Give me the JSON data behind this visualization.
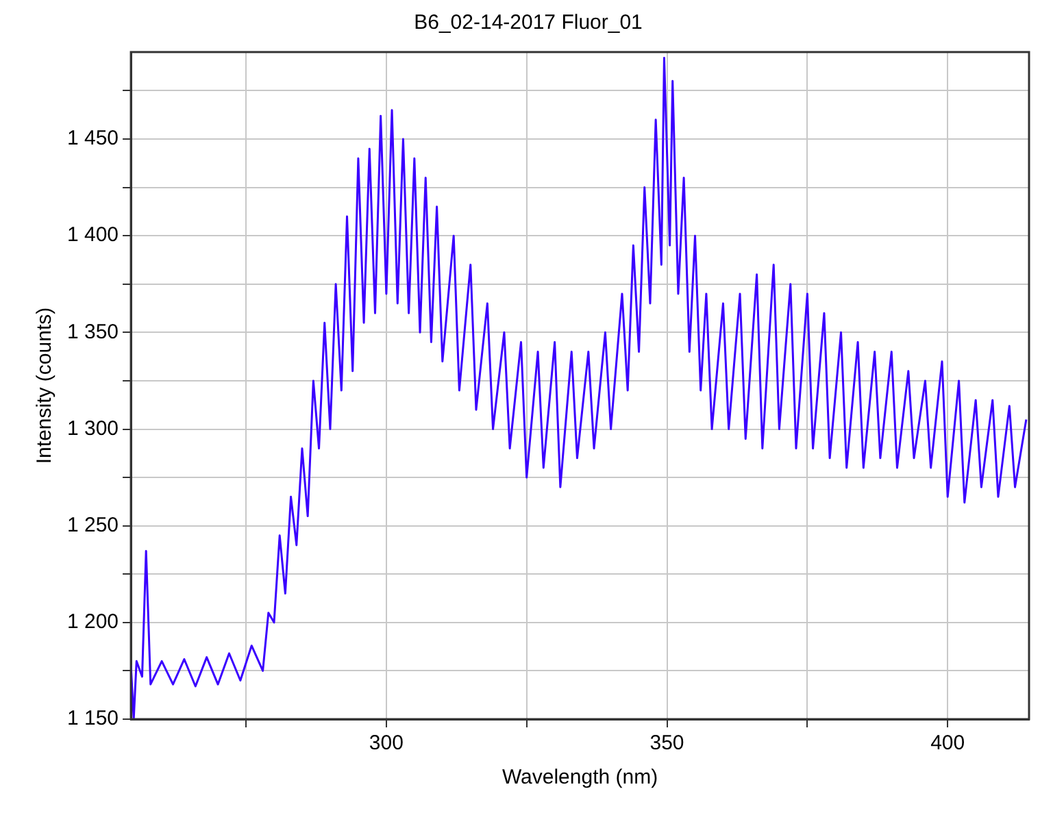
{
  "chart_data": {
    "type": "line",
    "title": "B6_02-14-2017 Fluor_01",
    "xlabel": "Wavelength (nm)",
    "ylabel": "Intensity (counts)",
    "xlim": [
      254.5,
      414.5
    ],
    "ylim": [
      1150,
      1495
    ],
    "xticks": [
      {
        "value": 275,
        "label": null
      },
      300,
      {
        "value": 325,
        "label": null
      },
      350,
      {
        "value": 375,
        "label": null
      },
      400
    ],
    "yticks": [
      {
        "value": 1150,
        "label": "1 150"
      },
      {
        "value": 1175,
        "label": null
      },
      {
        "value": 1200,
        "label": "1 200"
      },
      {
        "value": 1225,
        "label": null
      },
      {
        "value": 1250,
        "label": "1 250"
      },
      {
        "value": 1275,
        "label": null
      },
      {
        "value": 1300,
        "label": "1 300"
      },
      {
        "value": 1325,
        "label": null
      },
      {
        "value": 1350,
        "label": "1 350"
      },
      {
        "value": 1375,
        "label": null
      },
      {
        "value": 1400,
        "label": "1 400"
      },
      {
        "value": 1425,
        "label": null
      },
      {
        "value": 1450,
        "label": "1 450"
      },
      {
        "value": 1475,
        "label": null
      }
    ],
    "grid": true,
    "legend": false,
    "marker": "none",
    "line_style": "solid",
    "series": [
      {
        "color": "#3a00ff",
        "x": [
          254.5,
          255,
          255.5,
          256.5,
          257.2,
          258,
          260,
          262,
          264,
          266,
          268,
          270,
          272,
          274,
          276,
          278,
          279,
          280,
          281,
          282,
          283,
          284,
          285,
          286,
          287,
          288,
          289,
          290,
          291,
          292,
          293,
          294,
          295,
          296,
          297,
          298,
          299,
          300,
          301,
          302,
          303,
          304,
          305,
          306,
          307,
          308,
          309,
          310,
          312,
          313,
          315,
          316,
          318,
          319,
          321,
          322,
          324,
          325,
          327,
          328,
          330,
          331,
          333,
          334,
          336,
          337,
          339,
          340,
          342,
          343,
          344,
          345,
          346,
          347,
          348,
          349,
          349.5,
          350.5,
          351,
          352,
          353,
          354,
          355,
          356,
          357,
          358,
          360,
          361,
          363,
          364,
          366,
          367,
          369,
          370,
          372,
          373,
          375,
          376,
          378,
          379,
          381,
          382,
          384,
          385,
          387,
          388,
          390,
          391,
          393,
          394,
          396,
          397,
          399,
          400,
          402,
          403,
          405,
          406,
          408,
          409,
          411,
          412,
          414
        ],
        "values": [
          1178,
          1150,
          1180,
          1172,
          1237,
          1168,
          1180,
          1168,
          1181,
          1167,
          1182,
          1168,
          1184,
          1170,
          1188,
          1175,
          1205,
          1200,
          1245,
          1215,
          1265,
          1240,
          1290,
          1255,
          1325,
          1290,
          1355,
          1300,
          1375,
          1320,
          1410,
          1330,
          1440,
          1355,
          1445,
          1360,
          1462,
          1370,
          1465,
          1365,
          1450,
          1360,
          1440,
          1350,
          1430,
          1345,
          1415,
          1335,
          1400,
          1320,
          1385,
          1310,
          1365,
          1300,
          1350,
          1290,
          1345,
          1275,
          1340,
          1280,
          1345,
          1270,
          1340,
          1285,
          1340,
          1290,
          1350,
          1300,
          1370,
          1320,
          1395,
          1340,
          1425,
          1365,
          1460,
          1385,
          1492,
          1395,
          1480,
          1370,
          1430,
          1340,
          1400,
          1320,
          1370,
          1300,
          1365,
          1300,
          1370,
          1295,
          1380,
          1290,
          1385,
          1300,
          1375,
          1290,
          1370,
          1290,
          1360,
          1285,
          1350,
          1280,
          1345,
          1280,
          1340,
          1285,
          1340,
          1280,
          1330,
          1285,
          1325,
          1280,
          1335,
          1265,
          1325,
          1262,
          1315,
          1270,
          1315,
          1265,
          1312,
          1270,
          1305
        ]
      }
    ]
  }
}
